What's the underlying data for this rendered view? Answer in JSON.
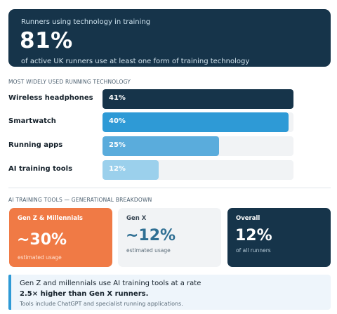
{
  "hero": {
    "subtitle": "Runners using technology in training",
    "value": "81%",
    "description": "of active UK runners use at least one form of training technology"
  },
  "chart_section_label": "MOST WIDELY USED RUNNING TECHNOLOGY",
  "chart_data": {
    "type": "bar",
    "orientation": "horizontal",
    "categories": [
      "Wireless headphones",
      "Smartwatch",
      "Running apps",
      "AI training tools"
    ],
    "values": [
      41,
      40,
      25,
      12
    ],
    "value_labels": [
      "41%",
      "40%",
      "25%",
      "12%"
    ],
    "xlim": [
      0,
      41
    ],
    "colors": [
      "#16344a",
      "#2e9ad6",
      "#5aacdc",
      "#9bd0ec"
    ],
    "grid": false
  },
  "breakdown_label": "AI TRAINING TOOLS — GENERATIONAL BREAKDOWN",
  "cards": [
    {
      "title": "Gen Z & Millennials",
      "value": "~30%",
      "subtitle": "estimated usage",
      "bg": "#f07a45",
      "fg": "#ffffff",
      "value_color": "#ffffff",
      "sub_color": "#ffe2d3"
    },
    {
      "title": "Gen X",
      "value": "~12%",
      "subtitle": "estimated usage",
      "bg": "#f1f3f5",
      "fg": "#3a4855",
      "value_color": "#2f6f93",
      "sub_color": "#5a6b78"
    },
    {
      "title": "Overall",
      "value": "12%",
      "subtitle": "of all runners",
      "bg": "#16344a",
      "fg": "#ffffff",
      "value_color": "#ffffff",
      "sub_color": "#b8ccd9"
    }
  ],
  "callout": {
    "line1": "Gen Z and millennials use AI training tools at a rate",
    "line2": "2.5×  higher than Gen X runners.",
    "line3": "Tools include ChatGPT and specialist running applications."
  }
}
